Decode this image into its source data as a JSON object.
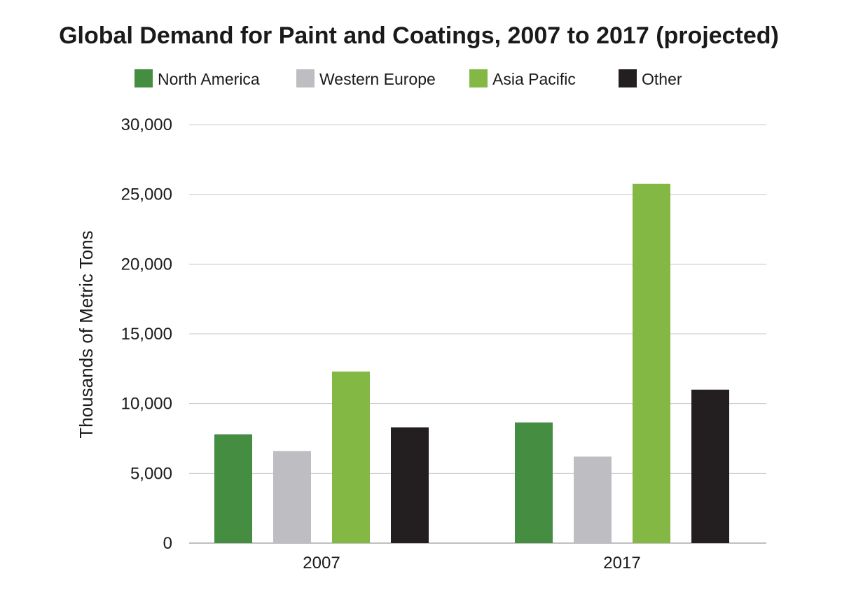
{
  "chart_data": {
    "type": "bar",
    "title": "Global Demand for Paint and Coatings, 2007 to 2017 (projected)",
    "xlabel": "",
    "ylabel": "Thousands of Metric Tons",
    "categories": [
      "2007",
      "2017"
    ],
    "series": [
      {
        "name": "North America",
        "color": "#448d41",
        "values": [
          7800,
          8650
        ]
      },
      {
        "name": "Western Europe",
        "color": "#bebec2",
        "values": [
          6600,
          6200
        ]
      },
      {
        "name": "Asia Pacific",
        "color": "#83b844",
        "values": [
          12300,
          25750
        ]
      },
      {
        "name": "Other",
        "color": "#231f20",
        "values": [
          8300,
          11000
        ]
      }
    ],
    "ylim": [
      0,
      30000
    ],
    "yticks": [
      0,
      5000,
      10000,
      15000,
      20000,
      25000,
      30000
    ],
    "ytick_labels": [
      "0",
      "5,000",
      "10,000",
      "15,000",
      "20,000",
      "25,000",
      "30,000"
    ],
    "grid": true,
    "legend_position": "top"
  }
}
